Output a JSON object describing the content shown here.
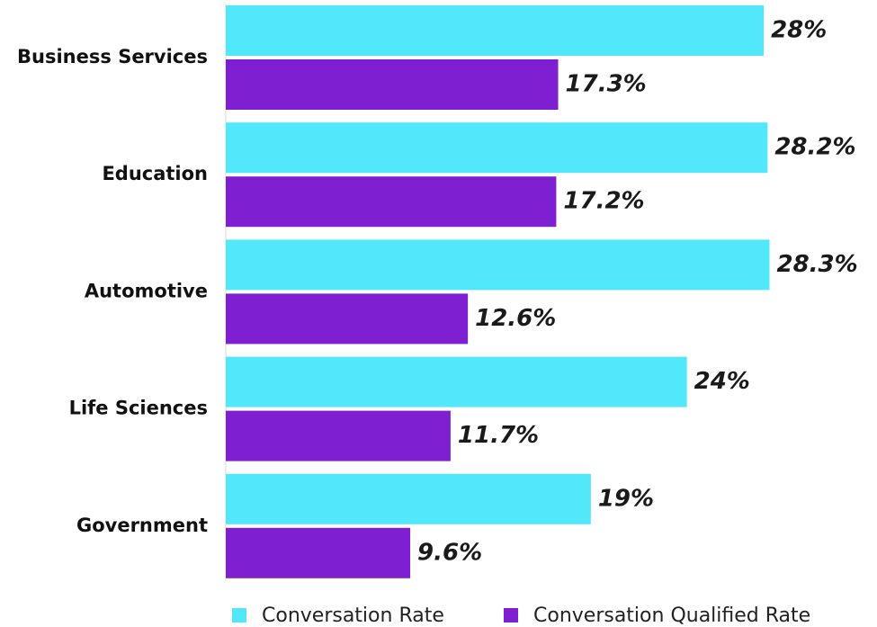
{
  "chart_data": {
    "type": "bar",
    "orientation": "horizontal",
    "categories": [
      "Business Services",
      "Education",
      "Automotive",
      "Life Sciences",
      "Government"
    ],
    "series": [
      {
        "name": "Conversation Rate",
        "color": "#52e8fb",
        "values": [
          28,
          28.2,
          28.3,
          24,
          19
        ],
        "value_labels": [
          "28%",
          "28.2%",
          "28.3%",
          "24%",
          "19%"
        ]
      },
      {
        "name": "Conversation Qualified Rate",
        "color": "#7f1fd2",
        "values": [
          17.3,
          17.2,
          12.6,
          11.7,
          9.6
        ],
        "value_labels": [
          "17.3%",
          "17.2%",
          "12.6%",
          "11.7%",
          "9.6%"
        ]
      }
    ],
    "legend": "bottom"
  }
}
